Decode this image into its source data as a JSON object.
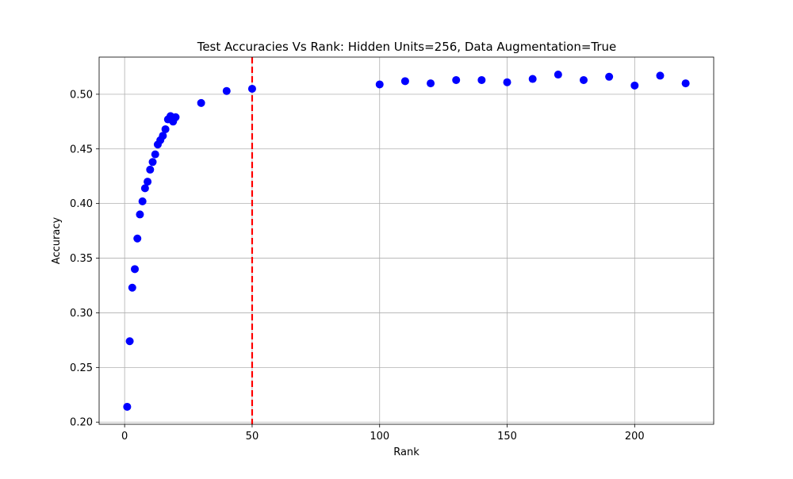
{
  "chart_data": {
    "type": "scatter",
    "title": "Test Accuracies Vs Rank: Hidden Units=256, Data Augmentation=True",
    "xlabel": "Rank",
    "ylabel": "Accuracy",
    "xlim": [
      -10,
      231
    ],
    "ylim": [
      0.198,
      0.534
    ],
    "xticks": [
      0,
      50,
      100,
      150,
      200
    ],
    "xtick_labels": [
      "0",
      "50",
      "100",
      "150",
      "200"
    ],
    "yticks": [
      0.2,
      0.25,
      0.3,
      0.35,
      0.4,
      0.45,
      0.5
    ],
    "ytick_labels": [
      "0.20",
      "0.25",
      "0.30",
      "0.35",
      "0.40",
      "0.45",
      "0.50"
    ],
    "grid": true,
    "marker_color": "#0000ff",
    "series": [
      {
        "x": [
          1,
          2,
          3,
          4,
          5,
          6,
          7,
          8,
          9,
          10,
          11,
          12,
          13,
          14,
          15,
          16,
          17,
          18,
          19,
          20,
          30,
          40,
          50,
          100,
          110,
          120,
          130,
          140,
          150,
          160,
          170,
          180,
          190,
          200,
          210,
          220
        ],
        "y": [
          0.214,
          0.274,
          0.323,
          0.34,
          0.368,
          0.39,
          0.402,
          0.414,
          0.42,
          0.431,
          0.438,
          0.445,
          0.454,
          0.458,
          0.462,
          0.468,
          0.477,
          0.48,
          0.475,
          0.479,
          0.492,
          0.503,
          0.505,
          0.509,
          0.512,
          0.51,
          0.513,
          0.513,
          0.511,
          0.514,
          0.518,
          0.513,
          0.516,
          0.508,
          0.517,
          0.51
        ]
      }
    ],
    "reference_line": {
      "x": 50,
      "color": "#ff0000",
      "style": "dashed"
    }
  }
}
